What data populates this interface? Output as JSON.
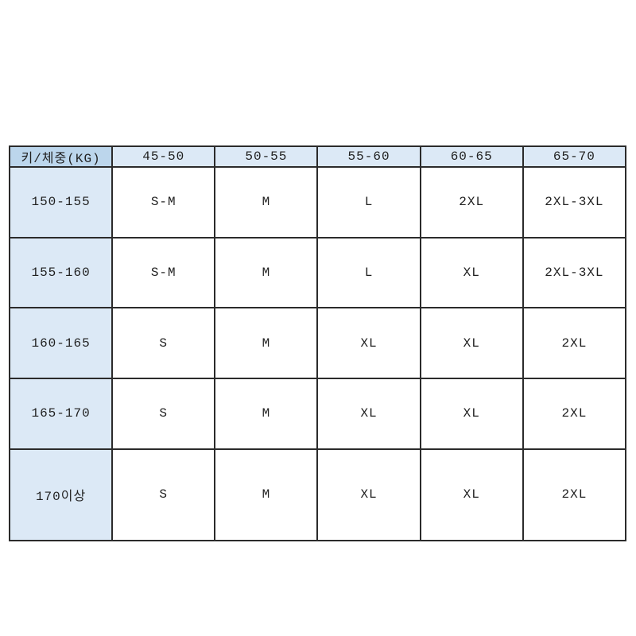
{
  "chart_data": {
    "type": "table",
    "title": "",
    "corner_header": "키/체중(KG)",
    "column_headers": [
      "45-50",
      "50-55",
      "55-60",
      "60-65",
      "65-70"
    ],
    "row_headers": [
      "150-155",
      "155-160",
      "160-165",
      "165-170",
      "170이상"
    ],
    "cells": [
      [
        "S-M",
        "M",
        "L",
        "2XL",
        "2XL-3XL"
      ],
      [
        "S-M",
        "M",
        "L",
        "XL",
        "2XL-3XL"
      ],
      [
        "S",
        "M",
        "XL",
        "XL",
        "2XL"
      ],
      [
        "S",
        "M",
        "XL",
        "XL",
        "2XL"
      ],
      [
        "S",
        "M",
        "XL",
        "XL",
        "2XL"
      ]
    ]
  },
  "colors": {
    "corner_header_bg": "#bcd6ec",
    "header_bg": "#dce9f6",
    "row_header_bg": "#dce9f6",
    "cell_bg": "#ffffff",
    "border": "#2b2b2b",
    "text": "#1f1f1f",
    "page_bg": "#ffffff"
  }
}
